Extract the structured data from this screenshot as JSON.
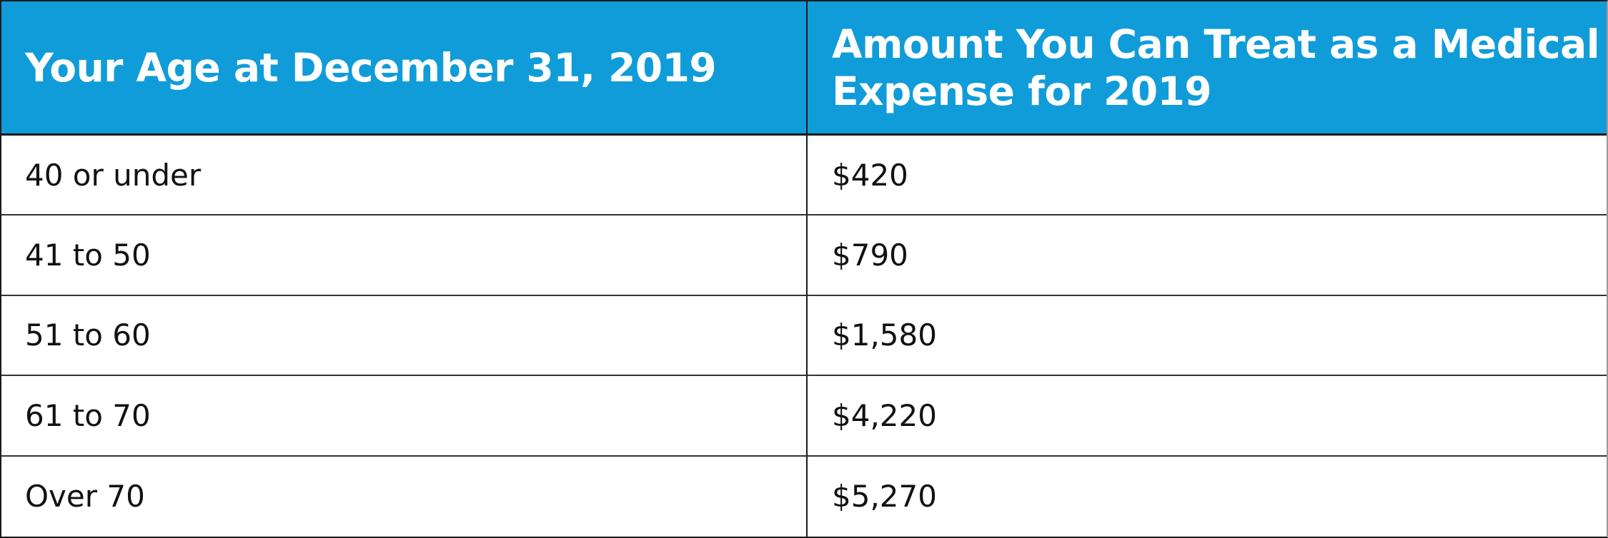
{
  "table": {
    "headers": [
      "Your Age at December 31, 2019",
      "Amount You Can Treat as a Medical Expense for 2019"
    ],
    "rows": [
      [
        "40 or under",
        "$420"
      ],
      [
        "41 to 50",
        "$790"
      ],
      [
        "51 to 60",
        "$1,580"
      ],
      [
        "61 to 70",
        "$4,220"
      ],
      [
        "Over 70",
        "$5,270"
      ]
    ]
  },
  "colors": {
    "header_bg": "#109cd9",
    "header_text": "#ffffff",
    "body_text": "#111111",
    "border": "#1a1a1a"
  }
}
